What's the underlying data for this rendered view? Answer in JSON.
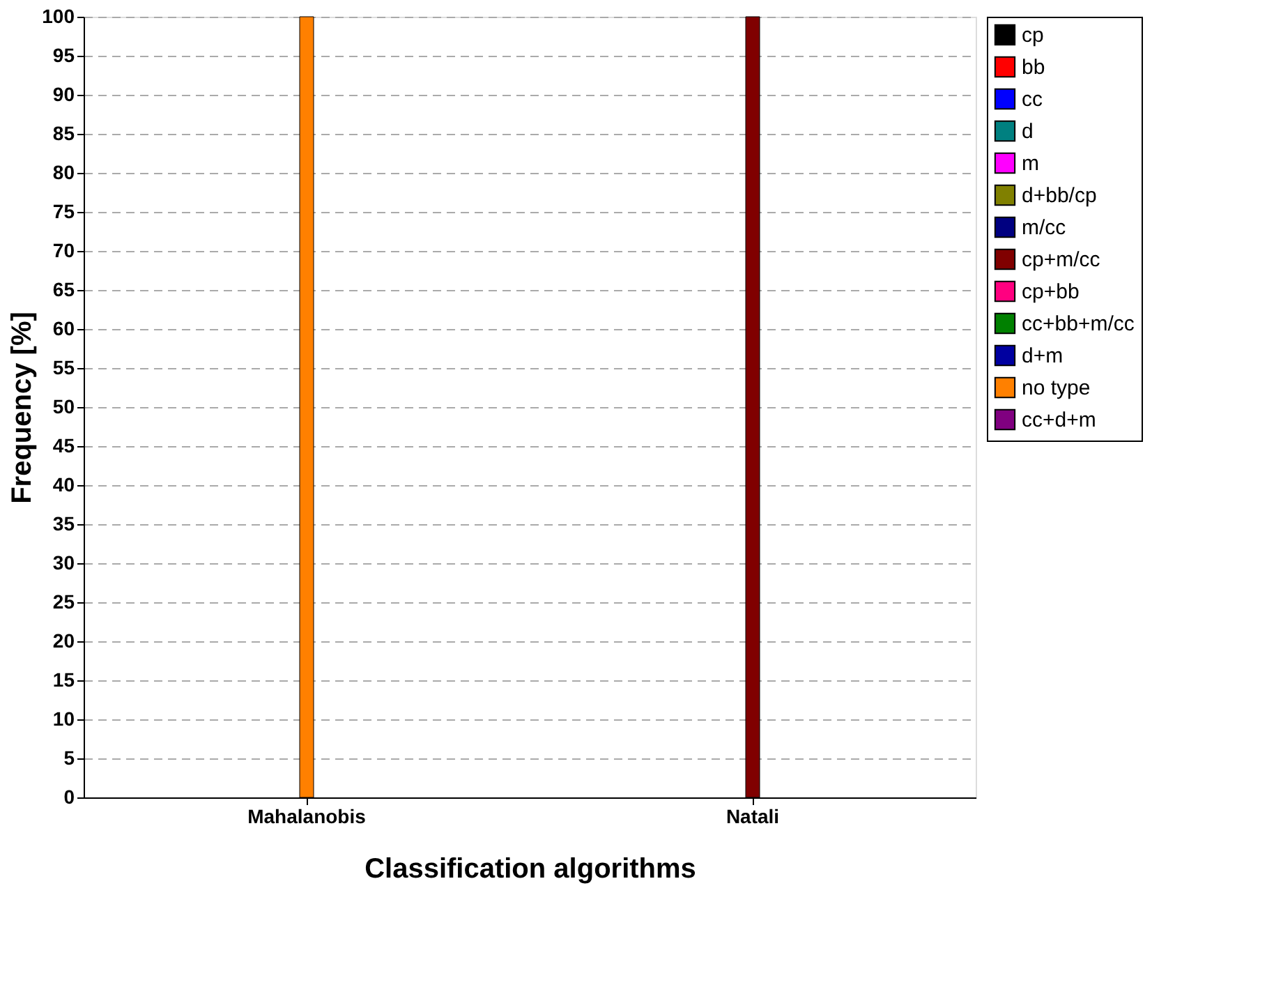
{
  "chart_data": {
    "type": "bar",
    "stacked": true,
    "xlabel": "Classification algorithms",
    "ylabel": "Frequency [%]",
    "categories": [
      "Mahalanobis",
      "Natali"
    ],
    "series": [
      {
        "name": "cp",
        "color": "#000000",
        "values": [
          0,
          0
        ]
      },
      {
        "name": "bb",
        "color": "#ff0000",
        "values": [
          0,
          0
        ]
      },
      {
        "name": "cc",
        "color": "#0000ff",
        "values": [
          0,
          0
        ]
      },
      {
        "name": "d",
        "color": "#008080",
        "values": [
          0,
          0
        ]
      },
      {
        "name": "m",
        "color": "#ff00ff",
        "values": [
          0,
          0
        ]
      },
      {
        "name": "d+bb/cp",
        "color": "#808000",
        "values": [
          0,
          0
        ]
      },
      {
        "name": "m/cc",
        "color": "#000080",
        "values": [
          0,
          0
        ]
      },
      {
        "name": "cp+m/cc",
        "color": "#800000",
        "values": [
          0,
          100
        ]
      },
      {
        "name": "cp+bb",
        "color": "#ff0080",
        "values": [
          0,
          0
        ]
      },
      {
        "name": "cc+bb+m/cc",
        "color": "#008000",
        "values": [
          0,
          0
        ]
      },
      {
        "name": "d+m",
        "color": "#0000a0",
        "values": [
          0,
          0
        ]
      },
      {
        "name": "no type",
        "color": "#ff8000",
        "values": [
          100,
          0
        ]
      },
      {
        "name": "cc+d+m",
        "color": "#800080",
        "values": [
          0,
          0
        ]
      }
    ],
    "ylim": [
      0,
      100
    ],
    "yticks": [
      0,
      5,
      10,
      15,
      20,
      25,
      30,
      35,
      40,
      45,
      50,
      55,
      60,
      65,
      70,
      75,
      80,
      85,
      90,
      95,
      100
    ],
    "grid": "y",
    "legend": "top right"
  }
}
